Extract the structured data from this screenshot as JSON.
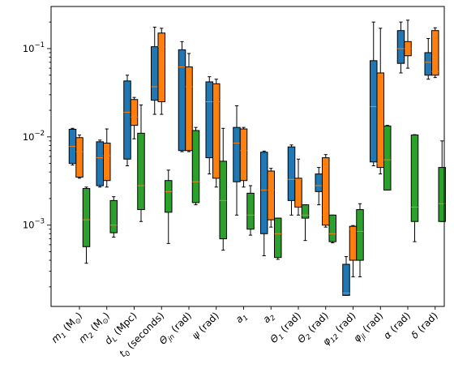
{
  "chart_data": {
    "type": "box",
    "title": "",
    "xlabel": "",
    "ylabel": "",
    "yscale": "log",
    "ylim": [
      0.00012,
      0.3
    ],
    "y_tick_labels": [
      "10^-3",
      "10^-2",
      "10^-1"
    ],
    "y_ticks": [
      0.001,
      0.01,
      0.1
    ],
    "grid": false,
    "legend": "none",
    "categories": [
      {
        "base": "m",
        "sub": "1",
        "rest": " (M",
        "sym": "⊙",
        "tail": ")"
      },
      {
        "base": "m",
        "sub": "2",
        "rest": " (M",
        "sym": "⊙",
        "tail": ")"
      },
      {
        "base": "d",
        "sub": "L",
        "rest": " (Mpc)",
        "sym": "",
        "tail": ""
      },
      {
        "base": "t",
        "sub": "0",
        "rest": " (seconds)",
        "sym": "",
        "tail": ""
      },
      {
        "base": "Θ",
        "sub": "jn",
        "rest": " (rad)",
        "sym": "",
        "tail": ""
      },
      {
        "base": "ψ",
        "sub": "",
        "rest": " (rad)",
        "sym": "",
        "tail": ""
      },
      {
        "base": "a",
        "sub": "1",
        "rest": "",
        "sym": "",
        "tail": ""
      },
      {
        "base": "a",
        "sub": "2",
        "rest": "",
        "sym": "",
        "tail": ""
      },
      {
        "base": "Θ",
        "sub": "1",
        "rest": " (rad)",
        "sym": "",
        "tail": ""
      },
      {
        "base": "Θ",
        "sub": "2",
        "rest": " (rad)",
        "sym": "",
        "tail": ""
      },
      {
        "base": "φ",
        "sub": "12",
        "rest": " (rad)",
        "sym": "",
        "tail": ""
      },
      {
        "base": "φ",
        "sub": "jl",
        "rest": " (rad)",
        "sym": "",
        "tail": ""
      },
      {
        "base": "α",
        "sub": "",
        "rest": " (rad)",
        "sym": "",
        "tail": ""
      },
      {
        "base": "δ",
        "sub": "",
        "rest": " (rad)",
        "sym": "",
        "tail": ""
      }
    ],
    "series": [
      {
        "color": "#1f77b4",
        "boxes": [
          {
            "whislo": 0.0048,
            "q1": 0.005,
            "med": 0.0078,
            "q3": 0.0122,
            "whishi": 0.0125
          },
          {
            "whislo": 0.0027,
            "q1": 0.0028,
            "med": 0.0058,
            "q3": 0.0088,
            "whishi": 0.0092
          },
          {
            "whislo": 0.0047,
            "q1": 0.0056,
            "med": 0.019,
            "q3": 0.043,
            "whishi": 0.05
          },
          {
            "whislo": 0.018,
            "q1": 0.026,
            "med": 0.037,
            "q3": 0.105,
            "whishi": 0.175
          },
          {
            "whislo": 0.0068,
            "q1": 0.007,
            "med": 0.062,
            "q3": 0.097,
            "whishi": 0.12
          },
          {
            "whislo": 0.0038,
            "q1": 0.0058,
            "med": 0.025,
            "q3": 0.042,
            "whishi": 0.048
          },
          {
            "whislo": 0.0013,
            "q1": 0.0031,
            "med": 0.0085,
            "q3": 0.0128,
            "whishi": 0.0225
          },
          {
            "whislo": 0.00045,
            "q1": 0.0008,
            "med": 0.0025,
            "q3": 0.0067,
            "whishi": 0.0069
          },
          {
            "whislo": 0.0013,
            "q1": 0.0019,
            "med": 0.0033,
            "q3": 0.0077,
            "whishi": 0.0081
          },
          {
            "whislo": 0.0017,
            "q1": 0.0024,
            "med": 0.0028,
            "q3": 0.0038,
            "whishi": 0.0045
          },
          {
            "whislo": 0.00016,
            "q1": 0.00016,
            "med": 0.00017,
            "q3": 0.00036,
            "whishi": 0.00044
          },
          {
            "whislo": 0.0047,
            "q1": 0.0052,
            "med": 0.022,
            "q3": 0.073,
            "whishi": 0.2
          },
          {
            "whislo": 0.053,
            "q1": 0.068,
            "med": 0.1,
            "q3": 0.16,
            "whishi": 0.2
          },
          {
            "whislo": 0.045,
            "q1": 0.05,
            "med": 0.07,
            "q3": 0.09,
            "whishi": 0.13
          }
        ]
      },
      {
        "color": "#ff7f0e",
        "boxes": [
          {
            "whislo": 0.0034,
            "q1": 0.0035,
            "med": 0.0068,
            "q3": 0.0098,
            "whishi": 0.0105
          },
          {
            "whislo": 0.0027,
            "q1": 0.0032,
            "med": 0.0061,
            "q3": 0.0085,
            "whishi": 0.0123
          },
          {
            "whislo": 0.0095,
            "q1": 0.0135,
            "med": 0.0168,
            "q3": 0.0265,
            "whishi": 0.028
          },
          {
            "whislo": 0.018,
            "q1": 0.025,
            "med": 0.105,
            "q3": 0.15,
            "whishi": 0.17
          },
          {
            "whislo": 0.0068,
            "q1": 0.007,
            "med": 0.037,
            "q3": 0.062,
            "whishi": 0.088
          },
          {
            "whislo": 0.0027,
            "q1": 0.0034,
            "med": 0.025,
            "q3": 0.04,
            "whishi": 0.045
          },
          {
            "whislo": 0.0027,
            "q1": 0.0032,
            "med": 0.007,
            "q3": 0.0123,
            "whishi": 0.0128
          },
          {
            "whislo": 0.00095,
            "q1": 0.00115,
            "med": 0.0025,
            "q3": 0.0041,
            "whishi": 0.0044
          },
          {
            "whislo": 0.0013,
            "q1": 0.0016,
            "med": 0.0033,
            "q3": 0.0034,
            "whishi": 0.0056
          },
          {
            "whislo": 0.00095,
            "q1": 0.001,
            "med": 0.0013,
            "q3": 0.0058,
            "whishi": 0.0063
          },
          {
            "whislo": 0.00026,
            "q1": 0.0004,
            "med": 0.0009,
            "q3": 0.00097,
            "whishi": 0.00099
          },
          {
            "whislo": 0.0038,
            "q1": 0.0045,
            "med": 0.005,
            "q3": 0.053,
            "whishi": 0.17
          },
          {
            "whislo": 0.06,
            "q1": 0.083,
            "med": 0.1,
            "q3": 0.12,
            "whishi": 0.21
          },
          {
            "whislo": 0.047,
            "q1": 0.05,
            "med": 0.055,
            "q3": 0.16,
            "whishi": 0.172
          }
        ]
      },
      {
        "color": "#2ca02c",
        "boxes": [
          {
            "whislo": 0.00037,
            "q1": 0.00057,
            "med": 0.00115,
            "q3": 0.0026,
            "whishi": 0.0027
          },
          {
            "whislo": 0.00073,
            "q1": 0.00082,
            "med": 0.001,
            "q3": 0.0019,
            "whishi": 0.0021
          },
          {
            "whislo": 0.0011,
            "q1": 0.0015,
            "med": 0.0028,
            "q3": 0.011,
            "whishi": 0.023
          },
          {
            "whislo": 0.00062,
            "q1": 0.0014,
            "med": 0.0024,
            "q3": 0.0032,
            "whishi": 0.0042
          },
          {
            "whislo": 0.0017,
            "q1": 0.0018,
            "med": 0.0031,
            "q3": 0.0118,
            "whishi": 0.0128
          },
          {
            "whislo": 0.00052,
            "q1": 0.0007,
            "med": 0.0019,
            "q3": 0.0053,
            "whishi": 0.0125
          },
          {
            "whislo": 0.00077,
            "q1": 0.0009,
            "med": 0.0013,
            "q3": 0.0023,
            "whishi": 0.0028
          },
          {
            "whislo": 0.00041,
            "q1": 0.00043,
            "med": 0.0008,
            "q3": 0.0012,
            "whishi": 0.0012
          },
          {
            "whislo": 0.00067,
            "q1": 0.0012,
            "med": 0.0013,
            "q3": 0.0017,
            "whishi": 0.0017
          },
          {
            "whislo": 0.00063,
            "q1": 0.00065,
            "med": 0.0008,
            "q3": 0.0013,
            "whishi": 0.0013
          },
          {
            "whislo": 0.00026,
            "q1": 0.0004,
            "med": 0.00085,
            "q3": 0.0015,
            "whishi": 0.00175
          },
          {
            "whislo": 0.0025,
            "q1": 0.0025,
            "med": 0.0055,
            "q3": 0.0133,
            "whishi": 0.0135
          },
          {
            "whislo": 0.00065,
            "q1": 0.0011,
            "med": 0.0016,
            "q3": 0.0105,
            "whishi": 0.0106
          },
          {
            "whislo": 0.0011,
            "q1": 0.0011,
            "med": 0.00175,
            "q3": 0.0045,
            "whishi": 0.009
          }
        ]
      }
    ],
    "median_color": "#ff7f0e"
  }
}
